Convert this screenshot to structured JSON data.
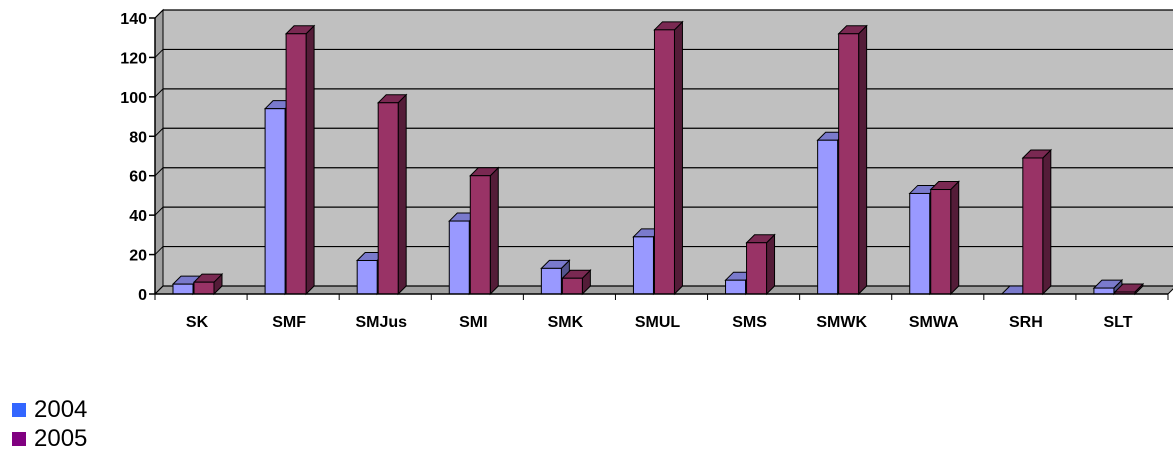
{
  "chart_data": {
    "type": "bar",
    "categories": [
      "SK",
      "SMF",
      "SMJus",
      "SMI",
      "SMK",
      "SMUL",
      "SMS",
      "SMWK",
      "SMWA",
      "SRH",
      "SLT"
    ],
    "series": [
      {
        "name": "2004",
        "values": [
          5,
          94,
          17,
          37,
          13,
          29,
          7,
          78,
          51,
          0,
          3
        ],
        "color": "#9999ff",
        "legend_color": "#3366ff"
      },
      {
        "name": "2005",
        "values": [
          6,
          132,
          97,
          60,
          8,
          134,
          26,
          132,
          53,
          69,
          1
        ],
        "color": "#993366",
        "legend_color": "#800080"
      }
    ],
    "ylim": [
      0,
      140
    ],
    "yticks": [
      "0",
      "20",
      "40",
      "60",
      "80",
      "100",
      "120",
      "140"
    ],
    "grid": true,
    "legend_position": "bottom-left",
    "plot_background": "#c0c0c0"
  }
}
